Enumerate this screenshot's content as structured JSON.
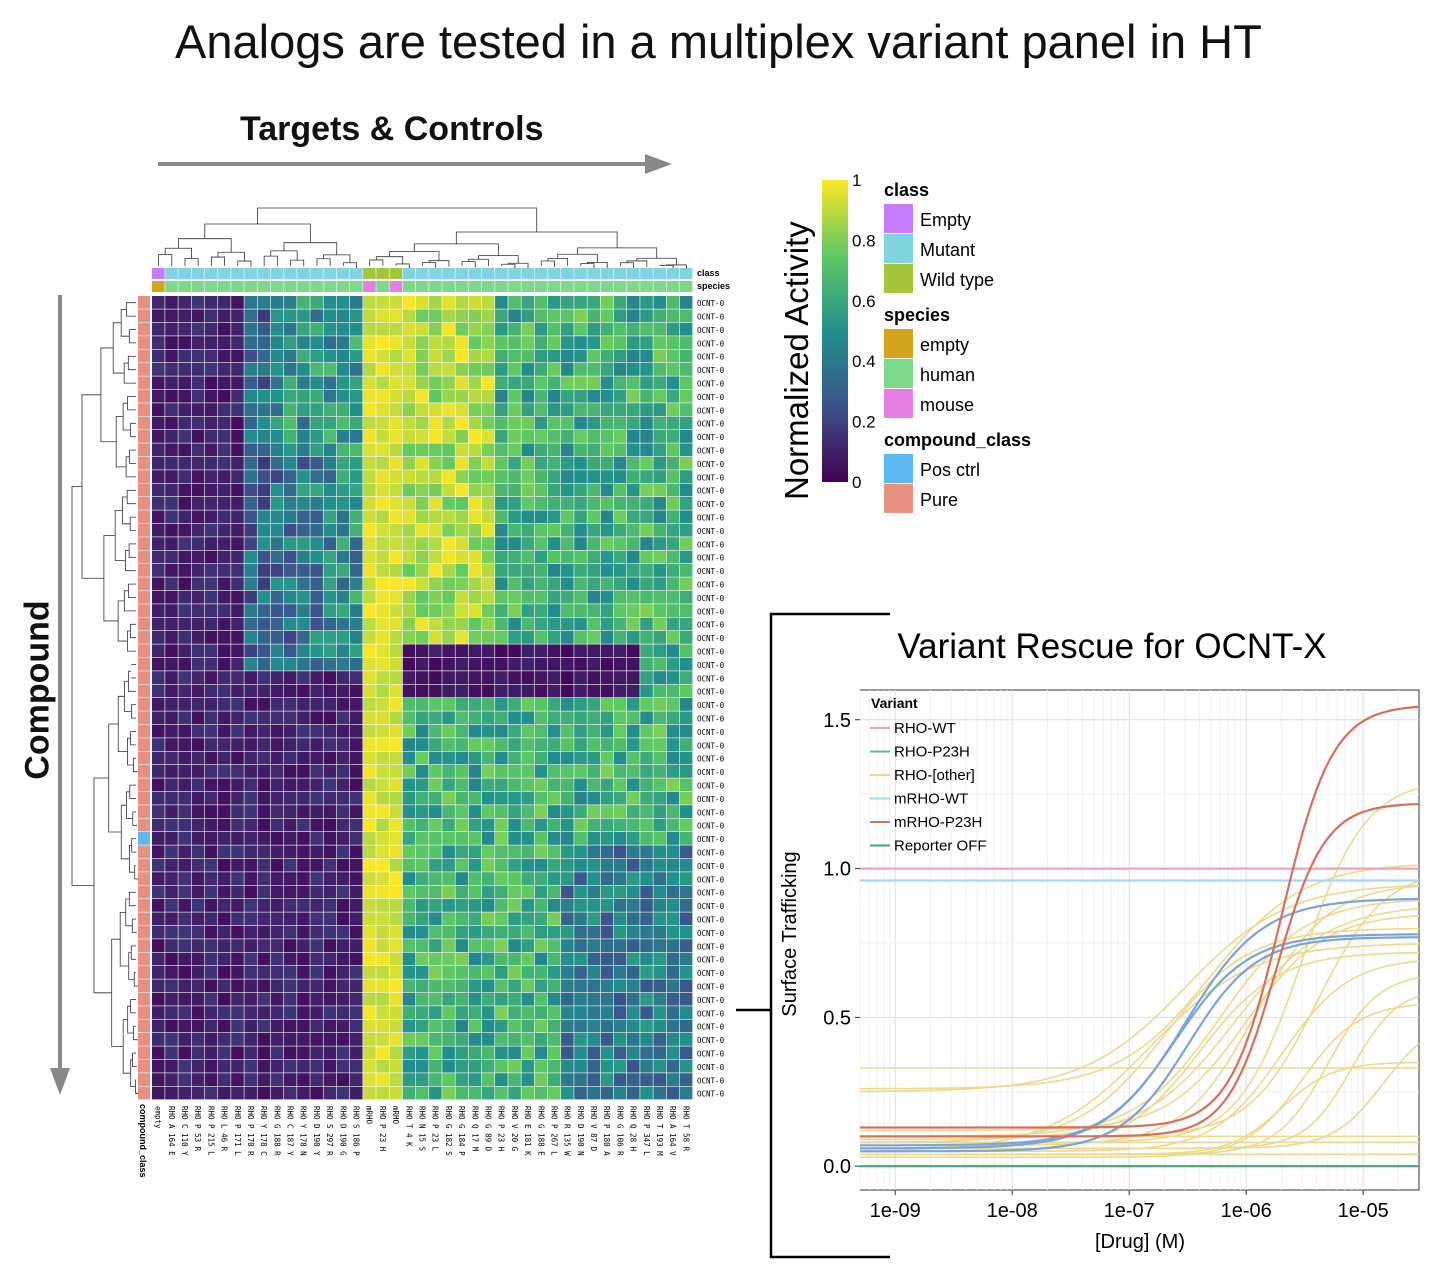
{
  "slide": {
    "title": "Analogs are tested in a multiplex variant panel in HT",
    "targets_label": "Targets & Controls",
    "compound_label": "Compound"
  },
  "heatmap": {
    "row_label": "OCNT-0",
    "row_count": 60,
    "top_annotations": [
      "class",
      "species"
    ],
    "left_annotation": "compound_class",
    "columns": [
      "empty",
      "RHO A 164 E",
      "RHO C 110 Y",
      "RHO P 53 R",
      "RHO P 215 L",
      "RHO L 46 R",
      "RHO P 171 L",
      "RHO P 170 R",
      "RHO Y 178 C",
      "RHO G 188 R",
      "RHO C 187 Y",
      "RHO Y 178 N",
      "RHO D 190 Y",
      "RHO S 297 R",
      "RHO D 190 G",
      "RHO S 186 P",
      "mRHO",
      "RHO P 23 H",
      "mRHO",
      "RHO T 4 K",
      "RHO N 15 S",
      "RHO P 23 L",
      "RHO G 182 S",
      "RHO G 184 P",
      "RHO Q 17 M",
      "RHO G 89 D",
      "RHO P 23 H",
      "RHO V 20 G",
      "RHO E 181 K",
      "RHO G 188 E",
      "RHO P 267 L",
      "RHO R 135 W",
      "RHO D 190 N",
      "RHO V 87 D",
      "RHO P 180 A",
      "RHO G 106 R",
      "RHO Q 28 H",
      "RHO P 347 L",
      "RHO T 193 M",
      "RHO A 164 V",
      "RHO T 58 R"
    ],
    "class_colors": {
      "Empty": "#c77cff",
      "Mutant": "#7fd4e0",
      "Wild type": "#a3c63a"
    },
    "species_colors": {
      "empty": "#d4a31c",
      "human": "#7ed88a",
      "mouse": "#e67fe3"
    },
    "compound_colors": {
      "Pos ctrl": "#5bb8f0",
      "Pure": "#e89181"
    }
  },
  "legend": {
    "colorbar_title": "Normalized Activity",
    "colorbar_ticks": [
      "0",
      "0.2",
      "0.4",
      "0.6",
      "0.8",
      "1"
    ],
    "colorbar_range": [
      0,
      1
    ],
    "colormap": [
      "#440154",
      "#3b528b",
      "#21918c",
      "#5ec962",
      "#fde725"
    ],
    "groups": [
      {
        "title": "class",
        "items": [
          {
            "label": "Empty",
            "color": "#c77cff"
          },
          {
            "label": "Mutant",
            "color": "#7fd4e0"
          },
          {
            "label": "Wild type",
            "color": "#a3c63a"
          }
        ]
      },
      {
        "title": "species",
        "items": [
          {
            "label": "empty",
            "color": "#d4a31c"
          },
          {
            "label": "human",
            "color": "#7ed88a"
          },
          {
            "label": "mouse",
            "color": "#e67fe3"
          }
        ]
      },
      {
        "title": "compound_class",
        "items": [
          {
            "label": "Pos ctrl",
            "color": "#5bb8f0"
          },
          {
            "label": "Pure",
            "color": "#e89181"
          }
        ]
      }
    ]
  },
  "chart_data": {
    "type": "line",
    "title": "Variant Rescue for OCNT-X",
    "xlabel": "[Drug] (M)",
    "ylabel": "Surface Trafficking",
    "x_scale": "log",
    "xlim": [
      5e-10,
      3e-05
    ],
    "ylim": [
      -0.08,
      1.6
    ],
    "x_ticks": [
      "1e-09",
      "1e-08",
      "1e-07",
      "1e-06",
      "1e-05"
    ],
    "y_ticks": [
      "0.0",
      "0.5",
      "1.0",
      "1.5"
    ],
    "grid": true,
    "legend_title": "Variant",
    "legend_position": "top-left",
    "series": [
      {
        "name": "RHO-WT",
        "color": "#f0a3b6",
        "curves": [
          {
            "bottom": 1.0,
            "top": 1.0,
            "ec50": 1e-06,
            "hill": 1
          }
        ]
      },
      {
        "name": "RHO-P23H",
        "color": "#7aa5d6",
        "curves": [
          {
            "bottom": 0.07,
            "top": 0.78,
            "ec50": 2.5e-07,
            "hill": 1.4
          },
          {
            "bottom": 0.06,
            "top": 0.9,
            "ec50": 3e-07,
            "hill": 1.3
          },
          {
            "bottom": 0.05,
            "top": 0.77,
            "ec50": 3.2e-07,
            "hill": 1.5
          }
        ]
      },
      {
        "name": "RHO-[other]",
        "color": "#ecd98e",
        "curves": [
          {
            "bottom": 0.25,
            "top": 0.95,
            "ec50": 3e-07,
            "hill": 1.0
          },
          {
            "bottom": 0.26,
            "top": 1.02,
            "ec50": 5e-07,
            "hill": 1.1
          },
          {
            "bottom": 0.1,
            "top": 0.9,
            "ec50": 6e-07,
            "hill": 1.2
          },
          {
            "bottom": 0.08,
            "top": 0.8,
            "ec50": 2e-07,
            "hill": 1.2
          },
          {
            "bottom": 0.05,
            "top": 0.75,
            "ec50": 1.5e-07,
            "hill": 1.0
          },
          {
            "bottom": 0.12,
            "top": 0.85,
            "ec50": 1e-06,
            "hill": 1.3
          },
          {
            "bottom": 0.05,
            "top": 0.7,
            "ec50": 2e-06,
            "hill": 1.5
          },
          {
            "bottom": 0.04,
            "top": 0.65,
            "ec50": 5e-06,
            "hill": 2.0
          },
          {
            "bottom": 0.06,
            "top": 0.6,
            "ec50": 8e-06,
            "hill": 2.2
          },
          {
            "bottom": 0.03,
            "top": 0.55,
            "ec50": 3e-06,
            "hill": 1.8
          },
          {
            "bottom": 0.08,
            "top": 1.3,
            "ec50": 3e-06,
            "hill": 1.6
          },
          {
            "bottom": 0.1,
            "top": 1.0,
            "ec50": 4e-06,
            "hill": 1.5
          },
          {
            "bottom": 0.07,
            "top": 0.95,
            "ec50": 1.2e-06,
            "hill": 1.4
          },
          {
            "bottom": 0.04,
            "top": 0.35,
            "ec50": 2e-06,
            "hill": 2.0
          },
          {
            "bottom": 0.06,
            "top": 0.5,
            "ec50": 1.5e-05,
            "hill": 2.0
          },
          {
            "bottom": 0.33,
            "top": 0.33,
            "ec50": 1e-06,
            "hill": 1
          },
          {
            "bottom": 0.1,
            "top": 0.1,
            "ec50": 1e-06,
            "hill": 1
          },
          {
            "bottom": 0.08,
            "top": 0.08,
            "ec50": 1e-06,
            "hill": 1
          },
          {
            "bottom": 0.04,
            "top": 0.04,
            "ec50": 1e-06,
            "hill": 1
          },
          {
            "bottom": 0.09,
            "top": 0.88,
            "ec50": 8e-07,
            "hill": 1.1
          },
          {
            "bottom": 0.05,
            "top": 0.72,
            "ec50": 4e-07,
            "hill": 1.3
          }
        ]
      },
      {
        "name": "mRHO-WT",
        "color": "#a9d4ee",
        "curves": [
          {
            "bottom": 0.96,
            "top": 0.96,
            "ec50": 1e-06,
            "hill": 1
          }
        ]
      },
      {
        "name": "mRHO-P23H",
        "color": "#d6705c",
        "curves": [
          {
            "bottom": 0.13,
            "top": 1.55,
            "ec50": 2e-06,
            "hill": 2.0
          },
          {
            "bottom": 0.1,
            "top": 1.22,
            "ec50": 1.8e-06,
            "hill": 2.1
          }
        ]
      },
      {
        "name": "Reporter OFF",
        "color": "#3aa876",
        "curves": [
          {
            "bottom": 0.0,
            "top": 0.0,
            "ec50": 1e-06,
            "hill": 1
          }
        ]
      }
    ]
  }
}
